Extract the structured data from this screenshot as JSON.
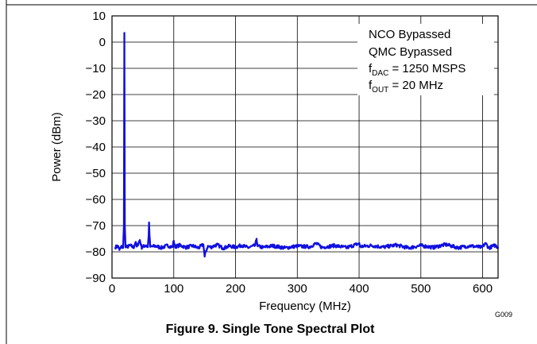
{
  "figure_id": "G009",
  "caption": "Figure 9. Single Tone Spectral Plot",
  "chart_data": {
    "type": "line",
    "title": "",
    "xlabel": "Frequency (MHz)",
    "ylabel": "Power (dBm)",
    "xlim": [
      0,
      625
    ],
    "ylim": [
      -90,
      10
    ],
    "x_ticks": [
      0,
      100,
      200,
      300,
      400,
      500,
      600
    ],
    "y_ticks": [
      10,
      0,
      -10,
      -20,
      -30,
      -40,
      -50,
      -60,
      -70,
      -80,
      -90
    ],
    "x_tick_labels": [
      "0",
      "100",
      "200",
      "300",
      "400",
      "500",
      "600"
    ],
    "y_tick_labels": [
      "10",
      "0",
      "−10",
      "−20",
      "−30",
      "−40",
      "−50",
      "−60",
      "−70",
      "−80",
      "−90"
    ],
    "grid": true,
    "series_color": "#1010e0",
    "noise_floor": -78,
    "annotations": [
      {
        "text": "NCO Bypassed"
      },
      {
        "text": "QMC Bypassed"
      },
      {
        "main": "f",
        "sub": "DAC",
        "rest": " = 1250 MSPS"
      },
      {
        "main": "f",
        "sub": "OUT",
        "rest": " = 20 MHz"
      }
    ],
    "series": [
      {
        "values": [
          [
            5,
            -78.2
          ],
          [
            10,
            -77.8
          ],
          [
            12,
            -79.3
          ],
          [
            15,
            -78
          ],
          [
            18,
            -78.5
          ],
          [
            19.3,
            -70
          ],
          [
            20,
            3.5
          ],
          [
            20.7,
            -70
          ],
          [
            22,
            -78.3
          ],
          [
            30,
            -77.6
          ],
          [
            35,
            -78.4
          ],
          [
            38,
            -76.3
          ],
          [
            40,
            -78
          ],
          [
            45,
            -75.5
          ],
          [
            48,
            -78.3
          ],
          [
            55,
            -77.5
          ],
          [
            58,
            -78.2
          ],
          [
            59.3,
            -74
          ],
          [
            60,
            -68.8
          ],
          [
            60.7,
            -74
          ],
          [
            62,
            -78.1
          ],
          [
            70,
            -77.8
          ],
          [
            80,
            -78.4
          ],
          [
            90,
            -77.6
          ],
          [
            98,
            -78.2
          ],
          [
            100,
            -75.8
          ],
          [
            102,
            -78
          ],
          [
            110,
            -77.5
          ],
          [
            120,
            -78.3
          ],
          [
            130,
            -77.7
          ],
          [
            140,
            -78.5
          ],
          [
            148,
            -77.2
          ],
          [
            150,
            -81.8
          ],
          [
            152,
            -79.8
          ],
          [
            155,
            -77.9
          ],
          [
            160,
            -78.2
          ],
          [
            170,
            -77.3
          ],
          [
            180,
            -78.6
          ],
          [
            190,
            -77.8
          ],
          [
            200,
            -78.2
          ],
          [
            210,
            -77.5
          ],
          [
            220,
            -78.4
          ],
          [
            232,
            -77.6
          ],
          [
            234,
            -75
          ],
          [
            236,
            -77.9
          ],
          [
            245,
            -78.3
          ],
          [
            260,
            -77.7
          ],
          [
            280,
            -78.5
          ],
          [
            300,
            -77.8
          ],
          [
            320,
            -78.1
          ],
          [
            330,
            -76.8
          ],
          [
            340,
            -78.3
          ],
          [
            360,
            -77.6
          ],
          [
            380,
            -78.4
          ],
          [
            400,
            -76.8
          ],
          [
            402,
            -78
          ],
          [
            420,
            -77.6
          ],
          [
            440,
            -78.2
          ],
          [
            460,
            -77.4
          ],
          [
            480,
            -78.5
          ],
          [
            500,
            -77.6
          ],
          [
            520,
            -78.3
          ],
          [
            540,
            -77.2
          ],
          [
            560,
            -78.4
          ],
          [
            580,
            -77.7
          ],
          [
            598,
            -78.3
          ],
          [
            605,
            -76.8
          ],
          [
            610,
            -78.5
          ],
          [
            620,
            -77.5
          ],
          [
            625,
            -78.2
          ]
        ]
      }
    ]
  }
}
